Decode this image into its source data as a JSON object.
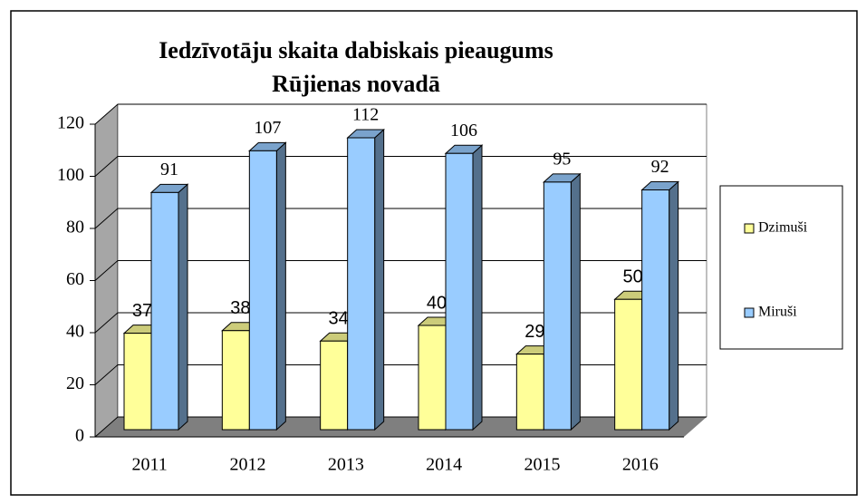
{
  "chart_data": {
    "type": "bar3d",
    "title": [
      "Iedzīvotāju  skaita dabiskais pieaugums",
      "Rūjienas novadā"
    ],
    "categories": [
      "2011",
      "2012",
      "2013",
      "2014",
      "2015",
      "2016"
    ],
    "series": [
      {
        "name": "Dzimuši",
        "color": "#ffff99",
        "values": [
          37,
          38,
          34,
          40,
          29,
          50
        ]
      },
      {
        "name": "Miruši",
        "color": "#99ccff",
        "values": [
          91,
          107,
          112,
          106,
          95,
          92
        ]
      }
    ],
    "ylim": [
      0,
      120
    ],
    "yticks": [
      0,
      20,
      40,
      60,
      80,
      100,
      120
    ],
    "grid": true,
    "legend": "right"
  }
}
